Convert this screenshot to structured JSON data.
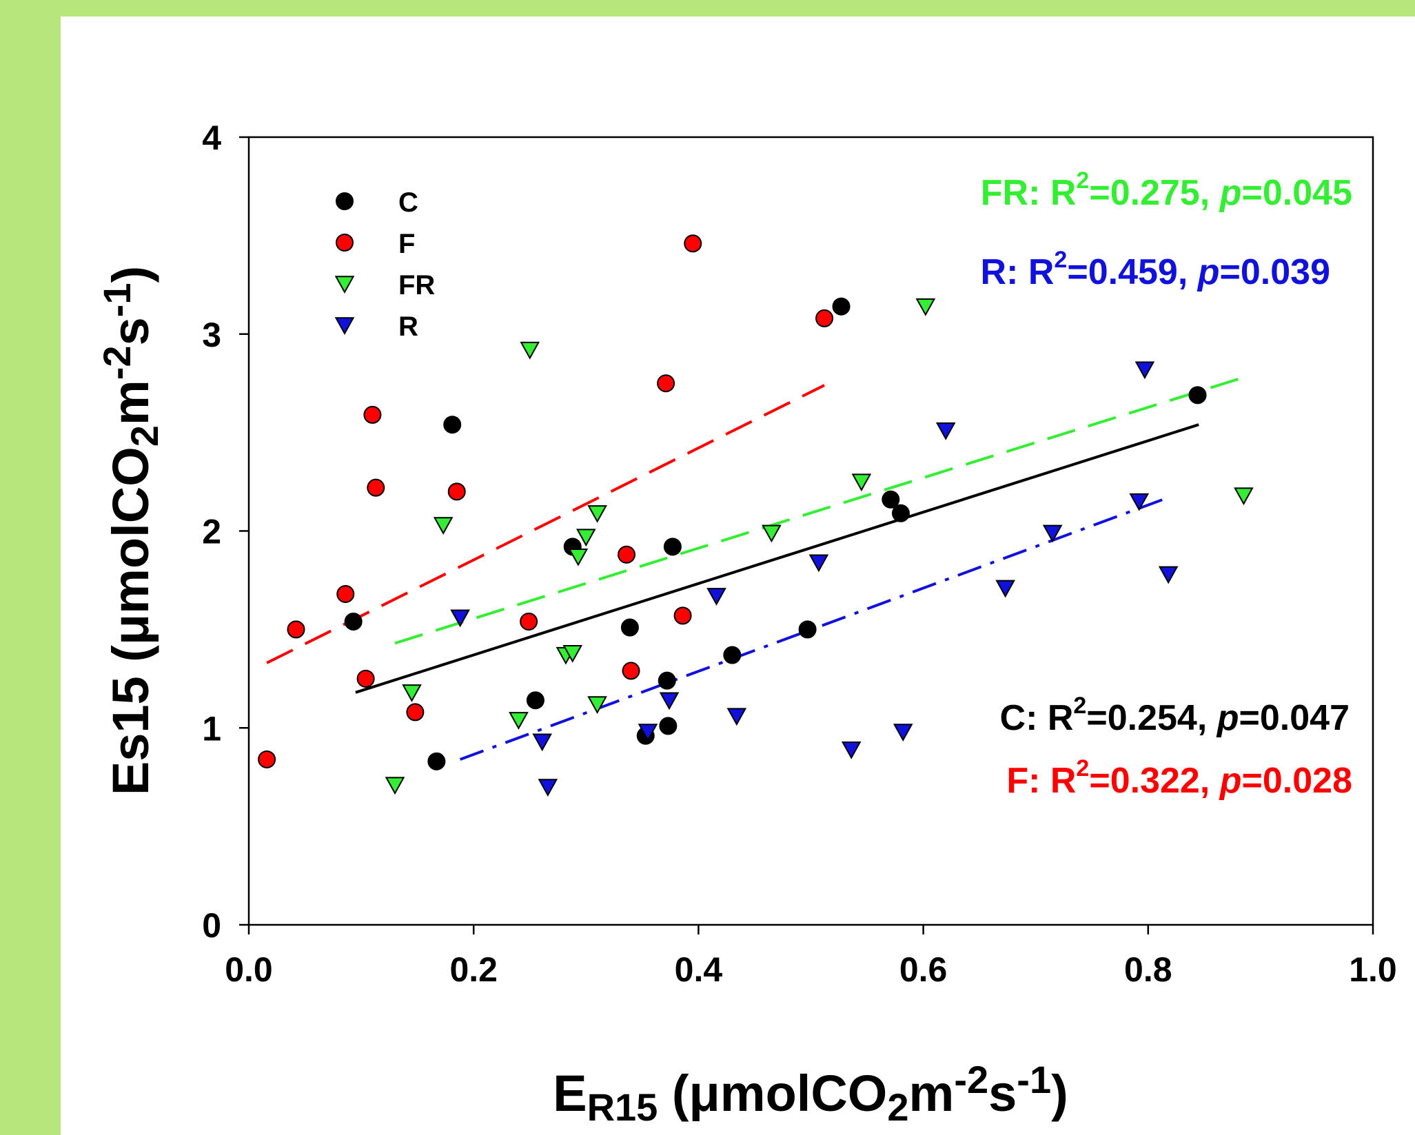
{
  "chart_data": {
    "type": "scatter",
    "xlabel": {
      "main": "E",
      "sub": "R15",
      "unit_open": " (μmolCO",
      "unit_sub": "2",
      "unit_m": "m",
      "sup1": "-2",
      "unit_s": "s",
      "sup2": "-1",
      "unit_close": ")"
    },
    "ylabel": {
      "main": "Es15",
      "unit_open": " (μmolCO",
      "unit_sub": "2",
      "unit_m": "m",
      "sup1": "-2",
      "unit_s": "s",
      "sup2": "-1",
      "unit_close": ")"
    },
    "xlim": [
      0.0,
      1.0
    ],
    "ylim": [
      0,
      4
    ],
    "xticks": [
      "0.0",
      "0.2",
      "0.4",
      "0.6",
      "0.8",
      "1.0"
    ],
    "yticks": [
      "0",
      "1",
      "2",
      "3",
      "4"
    ],
    "xtick_values": [
      0.0,
      0.2,
      0.4,
      0.6,
      0.8,
      1.0
    ],
    "ytick_values": [
      0,
      1,
      2,
      3,
      4
    ],
    "grid": false,
    "legend_position": "top-left",
    "series": [
      {
        "name": "C",
        "marker": "circle",
        "color": "#000000",
        "points": [
          [
            0.093,
            1.54
          ],
          [
            0.167,
            0.83
          ],
          [
            0.181,
            2.54
          ],
          [
            0.255,
            1.14
          ],
          [
            0.288,
            1.92
          ],
          [
            0.339,
            1.51
          ],
          [
            0.353,
            0.96
          ],
          [
            0.372,
            1.24
          ],
          [
            0.373,
            1.01
          ],
          [
            0.377,
            1.92
          ],
          [
            0.43,
            1.37
          ],
          [
            0.497,
            1.5
          ],
          [
            0.527,
            3.14
          ],
          [
            0.571,
            2.16
          ],
          [
            0.58,
            2.09
          ],
          [
            0.844,
            2.69
          ]
        ],
        "fit": {
          "x": [
            0.095,
            0.845
          ],
          "y": [
            1.18,
            2.54
          ],
          "style": "solid"
        },
        "stat": {
          "prefix": "C: R",
          "sup": "2",
          "mid": "=0.254, ",
          "p": "p",
          "val": "=0.047"
        }
      },
      {
        "name": "F",
        "marker": "circle",
        "color": "#ff0000",
        "points": [
          [
            0.016,
            0.84
          ],
          [
            0.042,
            1.5
          ],
          [
            0.086,
            1.68
          ],
          [
            0.104,
            1.25
          ],
          [
            0.11,
            2.59
          ],
          [
            0.113,
            2.22
          ],
          [
            0.148,
            1.08
          ],
          [
            0.185,
            2.2
          ],
          [
            0.249,
            1.54
          ],
          [
            0.336,
            1.88
          ],
          [
            0.34,
            1.29
          ],
          [
            0.371,
            2.75
          ],
          [
            0.386,
            1.57
          ],
          [
            0.395,
            3.46
          ],
          [
            0.512,
            3.08
          ]
        ],
        "fit": {
          "x": [
            0.016,
            0.512
          ],
          "y": [
            1.33,
            2.74
          ],
          "style": "dash"
        },
        "stat": {
          "prefix": "F: R",
          "sup": "2",
          "mid": "=0.322, ",
          "p": "p",
          "val": "=0.028"
        }
      },
      {
        "name": "FR",
        "marker": "triangle-down",
        "color": "#33ee33",
        "points": [
          [
            0.13,
            0.71
          ],
          [
            0.145,
            1.18
          ],
          [
            0.173,
            2.03
          ],
          [
            0.24,
            1.04
          ],
          [
            0.25,
            2.92
          ],
          [
            0.282,
            1.37
          ],
          [
            0.288,
            1.38
          ],
          [
            0.293,
            1.87
          ],
          [
            0.3,
            1.97
          ],
          [
            0.31,
            2.09
          ],
          [
            0.31,
            1.12
          ],
          [
            0.465,
            1.99
          ],
          [
            0.545,
            2.25
          ],
          [
            0.602,
            3.14
          ],
          [
            0.885,
            2.18
          ]
        ],
        "fit": {
          "x": [
            0.13,
            0.885
          ],
          "y": [
            1.43,
            2.78
          ],
          "style": "dash"
        },
        "stat": {
          "prefix": "FR: R",
          "sup": "2",
          "mid": "=0.275, ",
          "p": "p",
          "val": "=0.045"
        }
      },
      {
        "name": "R",
        "marker": "triangle-down",
        "color": "#1111dd",
        "points": [
          [
            0.188,
            1.56
          ],
          [
            0.261,
            0.93
          ],
          [
            0.266,
            0.7
          ],
          [
            0.355,
            0.98
          ],
          [
            0.374,
            1.14
          ],
          [
            0.416,
            1.67
          ],
          [
            0.434,
            1.06
          ],
          [
            0.507,
            1.84
          ],
          [
            0.536,
            0.89
          ],
          [
            0.582,
            0.98
          ],
          [
            0.62,
            2.51
          ],
          [
            0.673,
            1.71
          ],
          [
            0.715,
            1.99
          ],
          [
            0.792,
            2.15
          ],
          [
            0.797,
            2.82
          ],
          [
            0.818,
            1.78
          ]
        ],
        "fit": {
          "x": [
            0.188,
            0.818
          ],
          "y": [
            0.84,
            2.17
          ],
          "style": "dashdot"
        },
        "stat": {
          "prefix": "R: R",
          "sup": "2",
          "mid": "=0.459, ",
          "p": "p",
          "val": "=0.039"
        }
      }
    ]
  }
}
